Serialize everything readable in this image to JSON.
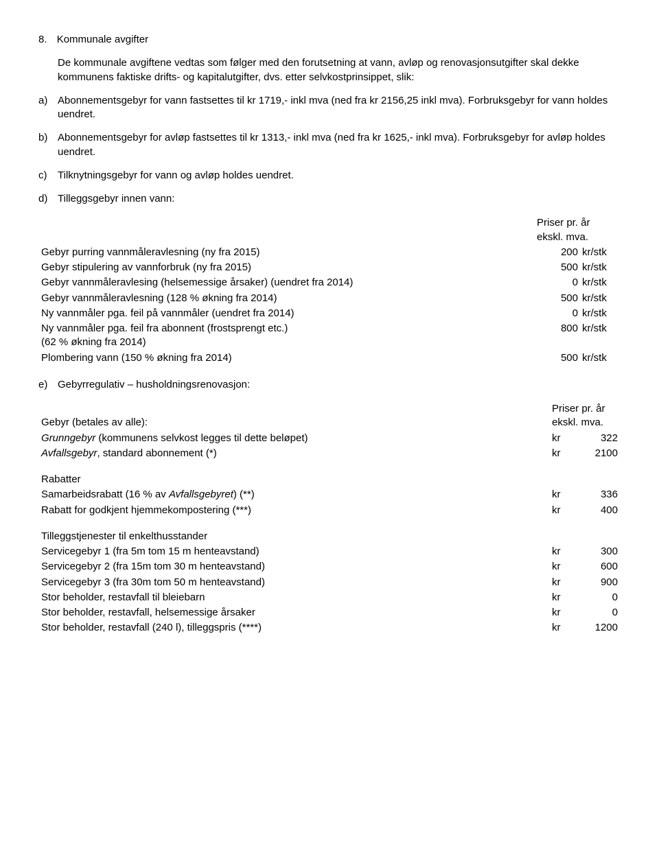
{
  "section": {
    "number": "8.",
    "title": "Kommunale avgifter"
  },
  "intro": "De kommunale avgiftene vedtas som følger med den forutsetning at vann, avløp og renovasjonsutgifter skal dekke kommunens faktiske drifts- og kapitalutgifter, dvs. etter selvkostprinsippet, slik:",
  "items": {
    "a": {
      "marker": "a)",
      "text": "Abonnementsgebyr for vann fastsettes til kr 1719,- inkl mva (ned fra kr 2156,25 inkl mva). Forbruksgebyr for vann holdes uendret."
    },
    "b": {
      "marker": "b)",
      "text": "Abonnementsgebyr for avløp fastsettes til kr 1313,- inkl mva (ned fra kr 1625,- inkl mva). Forbruksgebyr for avløp holdes uendret."
    },
    "c": {
      "marker": "c)",
      "text": "Tilknytningsgebyr for vann og avløp holdes uendret."
    },
    "d": {
      "marker": "d)",
      "text": "Tilleggsgebyr innen vann:"
    },
    "e": {
      "marker": "e)",
      "text": "Gebyrregulativ – husholdningsrenovasjon:"
    }
  },
  "table_d": {
    "header_line1": "Priser pr. år",
    "header_line2": "ekskl. mva.",
    "rows": [
      {
        "desc": "Gebyr purring vannmåleravlesning (ny fra 2015)",
        "val": "200",
        "unit": "kr/stk"
      },
      {
        "desc": "Gebyr stipulering av vannforbruk (ny fra 2015)",
        "val": "500",
        "unit": "kr/stk"
      },
      {
        "desc": "Gebyr vannmåleravlesing (helsemessige årsaker) (uendret fra 2014)",
        "val": "0",
        "unit": "kr/stk"
      },
      {
        "desc": "Gebyr vannmåleravlesning (128 % økning fra 2014)",
        "val": "500",
        "unit": "kr/stk"
      },
      {
        "desc": "Ny vannmåler pga. feil på vannmåler (uendret fra 2014)",
        "val": "0",
        "unit": "kr/stk"
      },
      {
        "desc": "Ny vannmåler pga. feil fra abonnent (frostsprengt etc.)\n(62 % økning fra 2014)",
        "val": "800",
        "unit": "kr/stk"
      },
      {
        "desc": "Plombering vann (150 % økning fra 2014)",
        "val": "500",
        "unit": "kr/stk"
      }
    ]
  },
  "table_e": {
    "header_line1": "Priser pr. år",
    "header_line2": "ekskl. mva.",
    "group1_label": "Gebyr (betales av alle):",
    "group1_rows": [
      {
        "desc_pre": "Grunngebyr",
        "desc_post": " (kommunens selvkost legges til dette beløpet)",
        "cur": "kr",
        "amt": "322"
      },
      {
        "desc_pre": "Avfallsgebyr",
        "desc_post": ", standard abonnement (*)",
        "cur": "kr",
        "amt": "2100"
      }
    ],
    "group2_label": "Rabatter",
    "group2_rows": [
      {
        "desc": "Samarbeidsrabatt (16 % av ",
        "desc_italic": "Avfallsgebyret",
        "desc_post": ") (**)",
        "cur": "kr",
        "amt": "336"
      },
      {
        "desc": "Rabatt for godkjent hjemmekompostering (***)",
        "cur": "kr",
        "amt": "400"
      }
    ],
    "group3_label": "Tilleggstjenester til enkelthusstander",
    "group3_rows": [
      {
        "desc": "Servicegebyr 1 (fra 5m tom 15 m henteavstand)",
        "cur": "kr",
        "amt": "300"
      },
      {
        "desc": "Servicegebyr 2 (fra 15m tom 30 m henteavstand)",
        "cur": "kr",
        "amt": "600"
      },
      {
        "desc": "Servicegebyr 3 (fra 30m tom 50 m henteavstand)",
        "cur": "kr",
        "amt": "900"
      },
      {
        "desc": "Stor beholder, restavfall til bleiebarn",
        "cur": "kr",
        "amt": "0"
      },
      {
        "desc": "Stor beholder, restavfall, helsemessige årsaker",
        "cur": "kr",
        "amt": "0"
      },
      {
        "desc": "Stor beholder, restavfall (240 l), tilleggspris (****)",
        "cur": "kr",
        "amt": "1200"
      }
    ]
  }
}
